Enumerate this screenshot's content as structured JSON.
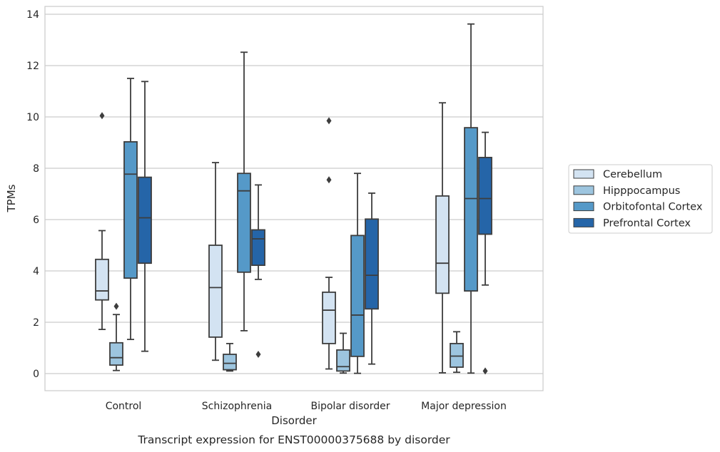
{
  "chart_data": {
    "type": "boxplot",
    "caption": "Transcript expression for ENST00000375688 by disorder",
    "xlabel": "Disorder",
    "ylabel": "TPMs",
    "ylim": [
      -0.65,
      14.3
    ],
    "yticks": [
      "0",
      "2",
      "4",
      "6",
      "8",
      "10",
      "12",
      "14"
    ],
    "grid": "horizontal",
    "legend_placement": "right-center",
    "categories": [
      "Control",
      "Schizophrenia",
      "Bipolar disorder",
      "Major depression"
    ],
    "series": [
      {
        "name": "Cerebellum",
        "color": "#d3e3f2",
        "boxes": [
          {
            "whisker_low": 1.72,
            "q1": 2.87,
            "median": 3.22,
            "q3": 4.45,
            "whisker_high": 5.57,
            "outliers": [
              10.05
            ]
          },
          {
            "whisker_low": 0.52,
            "q1": 1.42,
            "median": 3.35,
            "q3": 5.0,
            "whisker_high": 8.22,
            "outliers": []
          },
          {
            "whisker_low": 0.18,
            "q1": 1.17,
            "median": 2.47,
            "q3": 3.17,
            "whisker_high": 3.75,
            "outliers": [
              7.55,
              9.85
            ]
          },
          {
            "whisker_low": 0.03,
            "q1": 3.13,
            "median": 4.3,
            "q3": 6.92,
            "whisker_high": 10.55,
            "outliers": []
          }
        ]
      },
      {
        "name": "Hipppocampus",
        "color": "#9dc5df",
        "boxes": [
          {
            "whisker_low": 0.12,
            "q1": 0.33,
            "median": 0.62,
            "q3": 1.2,
            "whisker_high": 2.3,
            "outliers": [
              2.62
            ]
          },
          {
            "whisker_low": 0.1,
            "q1": 0.15,
            "median": 0.4,
            "q3": 0.75,
            "whisker_high": 1.17,
            "outliers": []
          },
          {
            "whisker_low": 0.02,
            "q1": 0.1,
            "median": 0.27,
            "q3": 0.92,
            "whisker_high": 1.57,
            "outliers": []
          },
          {
            "whisker_low": 0.05,
            "q1": 0.25,
            "median": 0.68,
            "q3": 1.17,
            "whisker_high": 1.63,
            "outliers": []
          }
        ]
      },
      {
        "name": "Orbitofontal Cortex",
        "color": "#5599c8",
        "boxes": [
          {
            "whisker_low": 1.33,
            "q1": 3.72,
            "median": 7.77,
            "q3": 9.03,
            "whisker_high": 11.5,
            "outliers": []
          },
          {
            "whisker_low": 1.67,
            "q1": 3.95,
            "median": 7.12,
            "q3": 7.8,
            "whisker_high": 12.52,
            "outliers": []
          },
          {
            "whisker_low": 0.01,
            "q1": 0.67,
            "median": 2.28,
            "q3": 5.38,
            "whisker_high": 7.8,
            "outliers": []
          },
          {
            "whisker_low": 0.02,
            "q1": 3.22,
            "median": 6.82,
            "q3": 9.58,
            "whisker_high": 13.62,
            "outliers": []
          }
        ]
      },
      {
        "name": "Prefrontal Cortex",
        "color": "#2565a8",
        "boxes": [
          {
            "whisker_low": 0.87,
            "q1": 4.3,
            "median": 6.07,
            "q3": 7.65,
            "whisker_high": 11.38,
            "outliers": []
          },
          {
            "whisker_low": 3.67,
            "q1": 4.22,
            "median": 5.25,
            "q3": 5.6,
            "whisker_high": 7.35,
            "outliers": [
              0.75
            ]
          },
          {
            "whisker_low": 0.37,
            "q1": 2.52,
            "median": 3.83,
            "q3": 6.02,
            "whisker_high": 7.03,
            "outliers": []
          },
          {
            "whisker_low": 3.45,
            "q1": 5.43,
            "median": 6.82,
            "q3": 8.42,
            "whisker_high": 9.4,
            "outliers": [
              0.1
            ]
          }
        ]
      }
    ]
  }
}
